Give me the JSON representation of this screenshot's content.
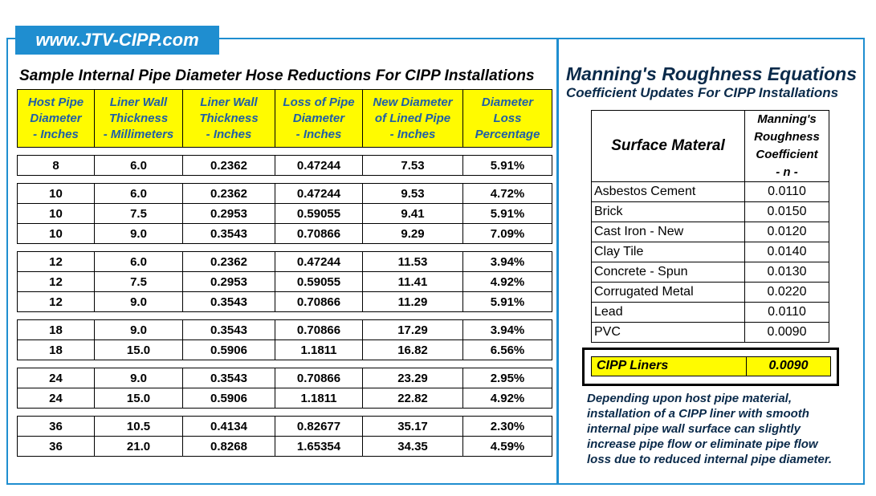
{
  "site": {
    "label": "www.JTV-CIPP.com"
  },
  "left": {
    "title": "Sample Internal Pipe Diameter Hose Reductions For CIPP Installations",
    "headers": [
      [
        "Host Pipe",
        "Diameter",
        "- Inches"
      ],
      [
        "Liner Wall",
        "Thickness",
        "- Millimeters"
      ],
      [
        "Liner Wall",
        "Thickness",
        "- Inches"
      ],
      [
        "Loss of Pipe",
        "Diameter",
        "- Inches"
      ],
      [
        "New Diameter",
        "of Lined Pipe",
        "- Inches"
      ],
      [
        "Diameter",
        "Loss",
        "Percentage"
      ]
    ],
    "groups": [
      [
        [
          "8",
          "6.0",
          "0.2362",
          "0.47244",
          "7.53",
          "5.91%"
        ]
      ],
      [
        [
          "10",
          "6.0",
          "0.2362",
          "0.47244",
          "9.53",
          "4.72%"
        ],
        [
          "10",
          "7.5",
          "0.2953",
          "0.59055",
          "9.41",
          "5.91%"
        ],
        [
          "10",
          "9.0",
          "0.3543",
          "0.70866",
          "9.29",
          "7.09%"
        ]
      ],
      [
        [
          "12",
          "6.0",
          "0.2362",
          "0.47244",
          "11.53",
          "3.94%"
        ],
        [
          "12",
          "7.5",
          "0.2953",
          "0.59055",
          "11.41",
          "4.92%"
        ],
        [
          "12",
          "9.0",
          "0.3543",
          "0.70866",
          "11.29",
          "5.91%"
        ]
      ],
      [
        [
          "18",
          "9.0",
          "0.3543",
          "0.70866",
          "17.29",
          "3.94%"
        ],
        [
          "18",
          "15.0",
          "0.5906",
          "1.1811",
          "16.82",
          "6.56%"
        ]
      ],
      [
        [
          "24",
          "9.0",
          "0.3543",
          "0.70866",
          "23.29",
          "2.95%"
        ],
        [
          "24",
          "15.0",
          "0.5906",
          "1.1811",
          "22.82",
          "4.92%"
        ]
      ],
      [
        [
          "36",
          "10.5",
          "0.4134",
          "0.82677",
          "35.17",
          "2.30%"
        ],
        [
          "36",
          "21.0",
          "0.8268",
          "1.65354",
          "34.35",
          "4.59%"
        ]
      ]
    ]
  },
  "right": {
    "title": "Manning's Roughness Equations",
    "subtitle": "Coefficient Updates For CIPP Installations",
    "header_surface": "Surface Materal",
    "header_coef": [
      "Manning's",
      "Roughness",
      "Coefficient",
      "- n -"
    ],
    "rows": [
      [
        "Asbestos Cement",
        "0.0110"
      ],
      [
        "Brick",
        "0.0150"
      ],
      [
        "Cast Iron - New",
        "0.0120"
      ],
      [
        "Clay Tile",
        "0.0140"
      ],
      [
        "Concrete - Spun",
        "0.0130"
      ],
      [
        "Corrugated Metal",
        "0.0220"
      ],
      [
        "Lead",
        "0.0110"
      ],
      [
        "PVC",
        "0.0090"
      ]
    ],
    "cipp": {
      "label": "CIPP Liners",
      "value": "0.0090"
    },
    "note_lines": [
      "Depending upon host pipe material,",
      "installation of a CIPP liner with smooth",
      "internal pipe wall surface can slightly",
      "increase pipe flow or eliminate pipe flow",
      "loss due to reduced internal pipe diameter."
    ]
  },
  "colors": {
    "accent": "#1f8ed0",
    "highlight": "#fffb00",
    "header_text": "#1f5fa8"
  }
}
